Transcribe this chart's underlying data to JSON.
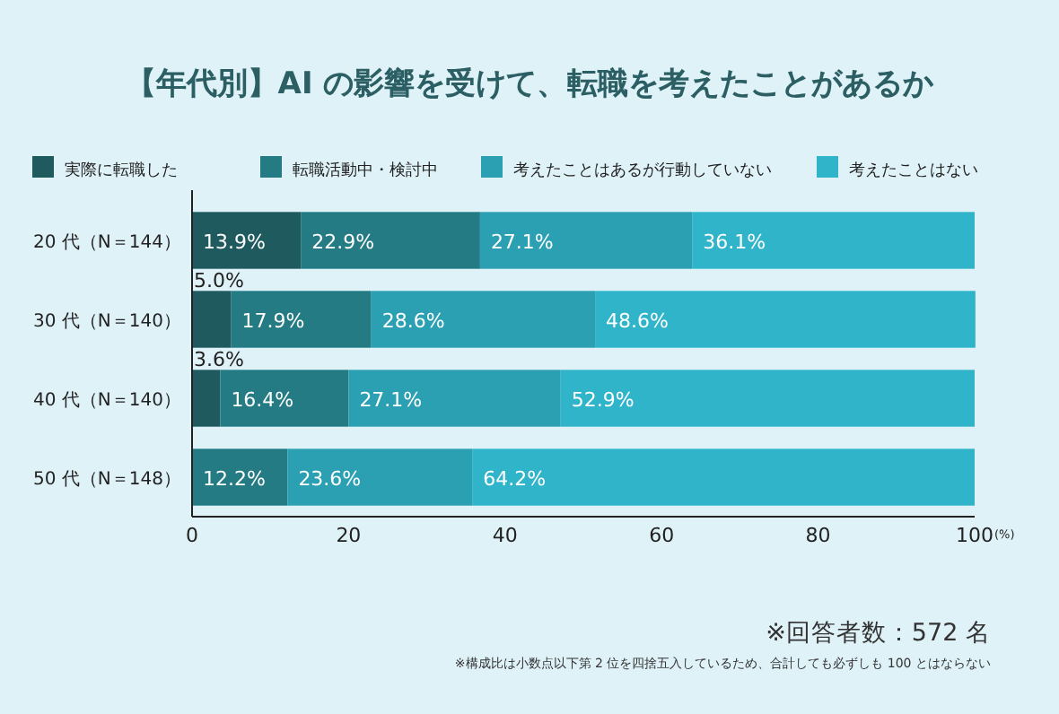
{
  "chart_data": {
    "type": "bar",
    "orientation": "horizontal",
    "stacked": true,
    "title": "【年代別】AI の影響を受けて、転職を考えたことがあるか",
    "categories": [
      "20 代（N＝144）",
      "30 代（N＝140）",
      "40 代（N＝140）",
      "50 代（N＝148）"
    ],
    "series": [
      {
        "name": "実際に転職した",
        "color": "#1e5a5e",
        "values": [
          13.9,
          5.0,
          3.6,
          0
        ],
        "value_labels": [
          "13.9%",
          "5.0%",
          "3.6%",
          null
        ]
      },
      {
        "name": "転職活動中・検討中",
        "color": "#247b83",
        "values": [
          22.9,
          17.9,
          16.4,
          12.2
        ],
        "value_labels": [
          "22.9%",
          "17.9%",
          "16.4%",
          "12.2%"
        ]
      },
      {
        "name": "考えたことはあるが行動していない",
        "color": "#2aa0b2",
        "values": [
          27.1,
          28.6,
          27.1,
          23.6
        ],
        "value_labels": [
          "27.1%",
          "28.6%",
          "27.1%",
          "23.6%"
        ]
      },
      {
        "name": "考えたことはない",
        "color": "#2fb4ca",
        "values": [
          36.1,
          48.6,
          52.9,
          64.2
        ],
        "value_labels": [
          "36.1%",
          "48.6%",
          "52.9%",
          "64.2%"
        ]
      }
    ],
    "xlim": [
      0,
      100
    ],
    "xticks": [
      0,
      20,
      40,
      60,
      80,
      100
    ],
    "xlabel": "(%)",
    "legend": "top",
    "grid": false,
    "annotations": [
      "※回答者数：572 名",
      "※構成比は小数点以下第 2 位を四捨五入しているため、合計しても必ずしも 100 とはならない"
    ]
  }
}
